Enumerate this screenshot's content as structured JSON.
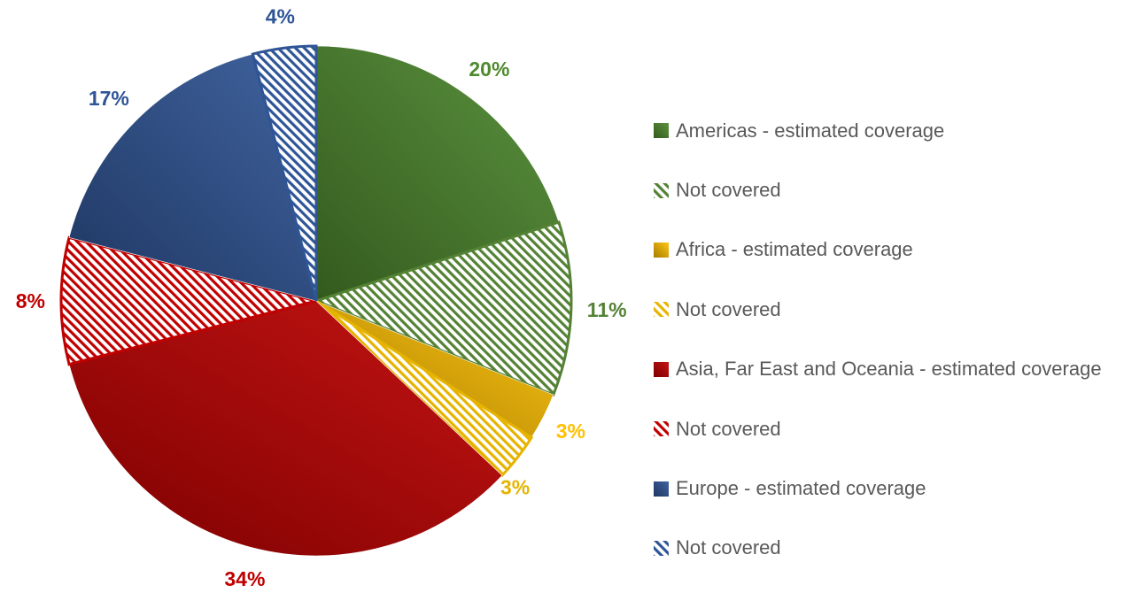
{
  "chart_data": {
    "type": "pie",
    "title": "",
    "start": "top, clockwise",
    "slices": [
      {
        "legend": "Americas - estimated coverage",
        "value": 20,
        "label": "20%",
        "color": "#4e8a2e",
        "pattern": "solid"
      },
      {
        "legend": "Not covered",
        "value": 11,
        "label": "11%",
        "color": "#548235",
        "pattern": "hatch"
      },
      {
        "legend": "Africa - estimated coverage",
        "value": 3,
        "label": "3%",
        "color": "#ffc000",
        "pattern": "solid"
      },
      {
        "legend": "Not covered",
        "value": 3,
        "label": "3%",
        "color": "#e6b400",
        "pattern": "hatch"
      },
      {
        "legend": "Asia, Far East and Oceania - estimated coverage",
        "value": 34,
        "label": "34%",
        "color": "#c00000",
        "pattern": "solid"
      },
      {
        "legend": "Not covered",
        "value": 8,
        "label": "8%",
        "color": "#c00000",
        "pattern": "hatch"
      },
      {
        "legend": "Europe - estimated coverage",
        "value": 17,
        "label": "17%",
        "color": "#2f5597",
        "pattern": "solid"
      },
      {
        "legend": "Not covered",
        "value": 4,
        "label": "4%",
        "color": "#2f5597",
        "pattern": "hatch"
      }
    ],
    "legend_position": "right"
  }
}
